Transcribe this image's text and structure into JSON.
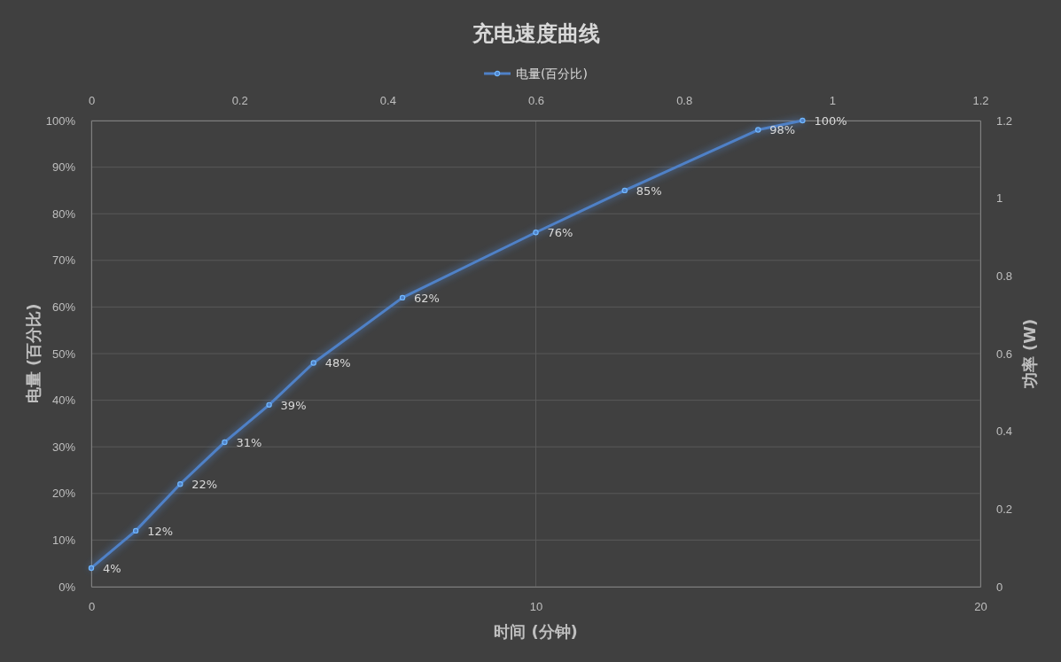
{
  "chart_data": {
    "type": "line",
    "title": "充电速度曲线",
    "xlabel": "时间 (分钟)",
    "ylabel": "电量 (百分比)",
    "y2label": "功率 (W)",
    "x": [
      0,
      1,
      2,
      3,
      4,
      5,
      7,
      10,
      12,
      15,
      16
    ],
    "series": [
      {
        "name": "电量(百分比)",
        "color": "#4f81c7",
        "values": [
          4,
          12,
          22,
          31,
          39,
          48,
          62,
          76,
          85,
          98,
          100
        ],
        "value_labels": [
          "4%",
          "12%",
          "22%",
          "31%",
          "39%",
          "48%",
          "62%",
          "76%",
          "85%",
          "98%",
          "100%"
        ]
      }
    ],
    "xlim": [
      0,
      20
    ],
    "xticks": [
      0,
      10,
      20
    ],
    "ylim": [
      0,
      100
    ],
    "yticks": [
      {
        "value": 0,
        "label": "0%"
      },
      {
        "value": 10,
        "label": "10%"
      },
      {
        "value": 20,
        "label": "20%"
      },
      {
        "value": 30,
        "label": "30%"
      },
      {
        "value": 40,
        "label": "40%"
      },
      {
        "value": 50,
        "label": "50%"
      },
      {
        "value": 60,
        "label": "60%"
      },
      {
        "value": 70,
        "label": "70%"
      },
      {
        "value": 80,
        "label": "80%"
      },
      {
        "value": 90,
        "label": "90%"
      },
      {
        "value": 100,
        "label": "100%"
      }
    ],
    "x2lim": [
      0,
      1.2
    ],
    "x2ticks": [
      0,
      0.2,
      0.4,
      0.6,
      0.8,
      1,
      1.2
    ],
    "y2lim": [
      0,
      1.2
    ],
    "y2ticks": [
      0,
      0.2,
      0.4,
      0.6,
      0.8,
      1,
      1.2
    ],
    "grid": true,
    "legend": "top",
    "marker": "circle",
    "line_style": "solid"
  }
}
